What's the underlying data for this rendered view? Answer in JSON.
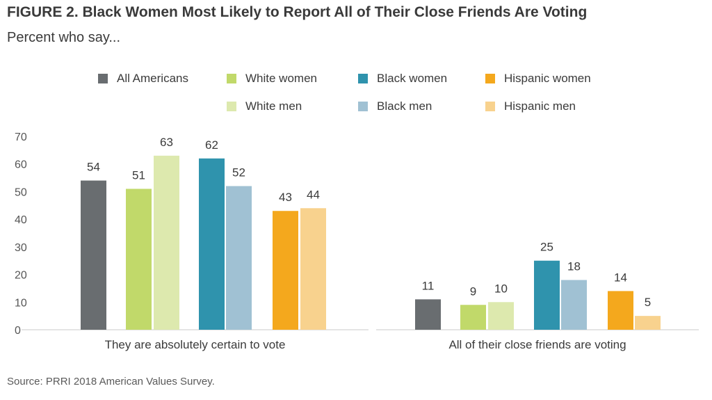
{
  "title": "FIGURE 2. Black Women Most Likely to Report All of Their Close Friends Are Voting",
  "subtitle": "Percent who say...",
  "source": "Source: PRRI 2018 American Values Survey.",
  "legend": [
    {
      "label": "All Americans",
      "color": "#696d70"
    },
    {
      "label": "White women",
      "color": "#c1d96a"
    },
    {
      "label": "Black women",
      "color": "#2f93ad"
    },
    {
      "label": "Hispanic women",
      "color": "#f4a81d"
    },
    {
      "label": "White men",
      "color": "#dde9ae"
    },
    {
      "label": "Black men",
      "color": "#a0c1d3"
    },
    {
      "label": "Hispanic men",
      "color": "#f8d28e"
    }
  ],
  "chart_data": {
    "type": "bar",
    "title": "FIGURE 2. Black Women Most Likely to Report All of Their Close Friends Are Voting",
    "subtitle": "Percent who say...",
    "categories": [
      "They are absolutely certain to vote",
      "All of their close friends are voting"
    ],
    "ylim": [
      0,
      70
    ],
    "yticks": [
      0,
      10,
      20,
      30,
      40,
      50,
      60,
      70
    ],
    "grid": false,
    "legend_position": "top",
    "series": [
      {
        "name": "All Americans",
        "color": "#696d70",
        "values": [
          54,
          11
        ]
      },
      {
        "name": "White women",
        "color": "#c1d96a",
        "values": [
          51,
          9
        ]
      },
      {
        "name": "White men",
        "color": "#dde9ae",
        "values": [
          63,
          10
        ]
      },
      {
        "name": "Black women",
        "color": "#2f93ad",
        "values": [
          62,
          25
        ]
      },
      {
        "name": "Black men",
        "color": "#a0c1d3",
        "values": [
          52,
          18
        ]
      },
      {
        "name": "Hispanic women",
        "color": "#f4a81d",
        "values": [
          43,
          14
        ]
      },
      {
        "name": "Hispanic men",
        "color": "#f8d28e",
        "values": [
          44,
          5
        ]
      }
    ]
  }
}
